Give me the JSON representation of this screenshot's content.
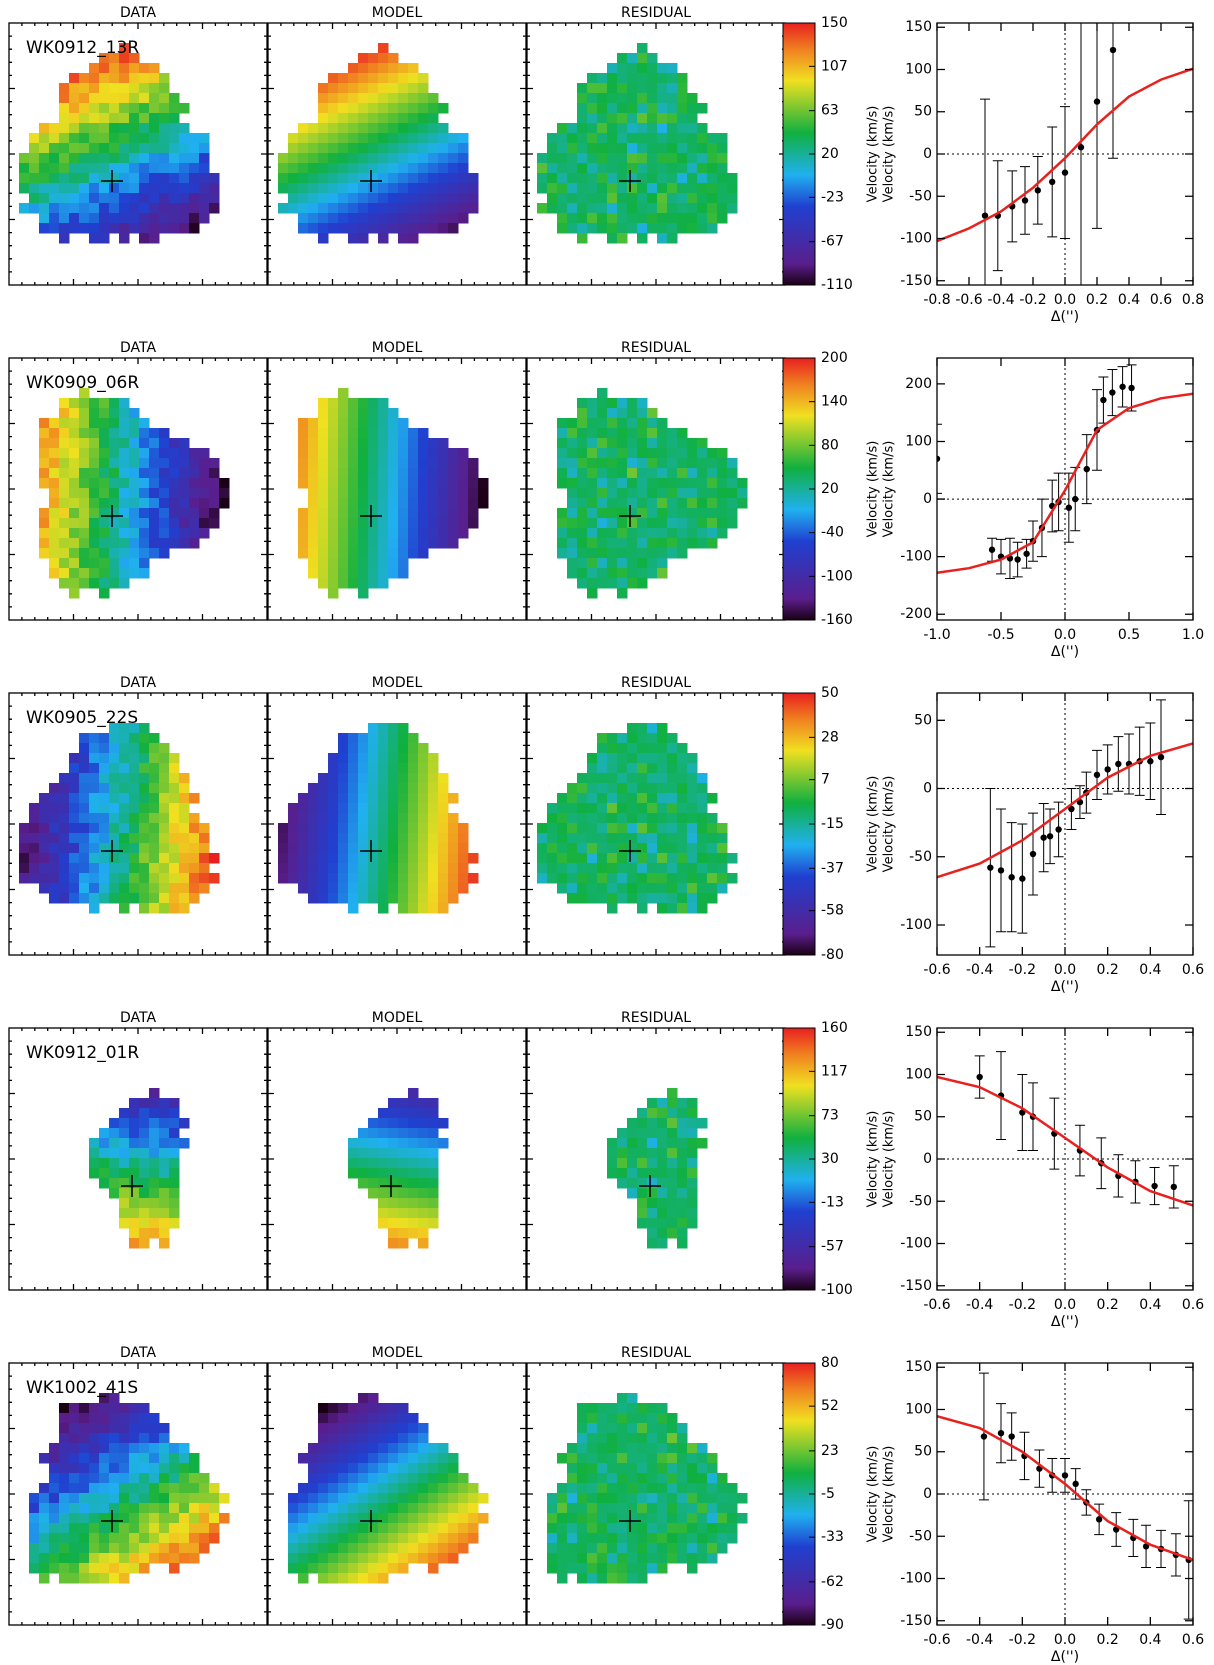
{
  "panel_titles": [
    "DATA",
    "MODEL",
    "RESIDUAL"
  ],
  "chart_data": [
    {
      "type": "scatter",
      "name": "WK0912_13R",
      "xlabel": "Δ('')",
      "ylabel": "Velocity (km/s)",
      "xlim": [
        -0.8,
        0.8
      ],
      "xticks": [
        -0.8,
        -0.6,
        -0.4,
        -0.2,
        {
          "value": 0,
          "label": "0.0"
        },
        0.2,
        0.4,
        0.6,
        0.8
      ],
      "ylim": [
        -155,
        155
      ],
      "yticks": [
        -150,
        -100,
        -50,
        0,
        50,
        100,
        150
      ],
      "colorbar": {
        "lim": [
          -110,
          150
        ],
        "ticks": [
          150,
          107,
          63,
          20,
          -23,
          -67,
          -110
        ]
      },
      "points": {
        "color": "#000000",
        "x": [
          -0.5,
          -0.42,
          -0.33,
          -0.25,
          -0.17,
          -0.08,
          0.0,
          0.1,
          0.2,
          0.3
        ],
        "values": [
          -73,
          -73,
          -62,
          -55,
          -43,
          -33,
          -22,
          8,
          62,
          123
        ],
        "errors": [
          138,
          65,
          42,
          40,
          40,
          65,
          78,
          200,
          150,
          128
        ]
      },
      "model": {
        "color": "#e8201e",
        "x": [
          -0.8,
          -0.6,
          -0.4,
          -0.2,
          0,
          0.2,
          0.4,
          0.6,
          0.8
        ],
        "values": [
          -103,
          -88,
          -68,
          -40,
          -5,
          35,
          68,
          88,
          101
        ]
      }
    },
    {
      "type": "scatter",
      "name": "WK0909_06R",
      "xlabel": "Δ('')",
      "ylabel": "Velocity (km/s)",
      "xlim": [
        -1,
        1
      ],
      "xticks": [
        {
          "value": -1,
          "label": "-1.0"
        },
        -0.5,
        {
          "value": 0,
          "label": "0.0"
        },
        0.5,
        {
          "value": 1,
          "label": "1.0"
        }
      ],
      "ylim": [
        -210,
        245
      ],
      "yticks": [
        -200,
        -100,
        0,
        100,
        200
      ],
      "colorbar": {
        "lim": [
          -160,
          200
        ],
        "ticks": [
          200,
          140,
          80,
          20,
          -40,
          -100,
          -160
        ]
      },
      "points": {
        "color": "#000000",
        "x": [
          -1.0,
          -0.57,
          -0.5,
          -0.43,
          -0.37,
          -0.3,
          -0.25,
          -0.18,
          -0.1,
          -0.05,
          0.03,
          0.08,
          0.17,
          0.25,
          0.3,
          0.37,
          0.45,
          0.52
        ],
        "values": [
          70,
          -88,
          -100,
          -103,
          -105,
          -95,
          -73,
          -50,
          -12,
          -5,
          -15,
          0,
          52,
          120,
          172,
          185,
          195,
          193
        ],
        "errors": [
          60,
          20,
          30,
          35,
          30,
          25,
          35,
          50,
          45,
          50,
          60,
          55,
          60,
          70,
          40,
          40,
          35,
          40
        ]
      },
      "model": {
        "color": "#e8201e",
        "x": [
          -1,
          -0.75,
          -0.5,
          -0.25,
          0,
          0.25,
          0.5,
          0.75,
          1
        ],
        "values": [
          -128,
          -120,
          -105,
          -75,
          15,
          120,
          158,
          175,
          183
        ]
      }
    },
    {
      "type": "scatter",
      "name": "WK0905_22S",
      "xlabel": "Δ('')",
      "ylabel": "Velocity (km/s)",
      "xlim": [
        -0.6,
        0.6
      ],
      "xticks": [
        -0.6,
        -0.4,
        -0.2,
        {
          "value": 0,
          "label": "0.0"
        },
        0.2,
        0.4,
        0.6
      ],
      "ylim": [
        -122,
        70
      ],
      "yticks": [
        -100,
        -50,
        0,
        50
      ],
      "colorbar": {
        "lim": [
          -80,
          50
        ],
        "ticks": [
          50,
          28,
          7,
          -15,
          -37,
          -58,
          -80
        ]
      },
      "points": {
        "color": "#000000",
        "x": [
          -0.35,
          -0.3,
          -0.25,
          -0.2,
          -0.15,
          -0.1,
          -0.07,
          -0.03,
          0.03,
          0.07,
          0.1,
          0.15,
          0.2,
          0.25,
          0.3,
          0.35,
          0.4,
          0.45
        ],
        "values": [
          -58,
          -60,
          -65,
          -66,
          -48,
          -36,
          -35,
          -30,
          -15,
          -10,
          -3,
          10,
          14,
          18,
          18,
          20,
          20,
          23
        ],
        "errors": [
          58,
          45,
          40,
          40,
          30,
          25,
          20,
          20,
          15,
          12,
          15,
          18,
          18,
          20,
          22,
          25,
          28,
          42
        ]
      },
      "model": {
        "color": "#e8201e",
        "x": [
          -0.6,
          -0.4,
          -0.2,
          0,
          0.2,
          0.4,
          0.6
        ],
        "values": [
          -65,
          -55,
          -38,
          -15,
          8,
          24,
          33
        ]
      }
    },
    {
      "type": "scatter",
      "name": "WK0912_01R",
      "xlabel": "Δ('')",
      "ylabel": "Velocity (km/s)",
      "xlim": [
        -0.6,
        0.6
      ],
      "xticks": [
        -0.6,
        -0.4,
        -0.2,
        {
          "value": 0,
          "label": "0.0"
        },
        0.2,
        0.4,
        0.6
      ],
      "ylim": [
        -155,
        155
      ],
      "yticks": [
        -150,
        -100,
        -50,
        0,
        50,
        100,
        150
      ],
      "colorbar": {
        "lim": [
          -100,
          160
        ],
        "ticks": [
          160,
          117,
          73,
          30,
          -13,
          -57,
          -100
        ]
      },
      "points": {
        "color": "#000000",
        "x": [
          -0.4,
          -0.3,
          -0.2,
          -0.15,
          -0.05,
          0.07,
          0.17,
          0.25,
          0.33,
          0.42,
          0.51
        ],
        "values": [
          97,
          75,
          55,
          50,
          30,
          10,
          -5,
          -20,
          -27,
          -32,
          -33
        ],
        "errors": [
          25,
          52,
          45,
          40,
          42,
          30,
          30,
          25,
          25,
          22,
          25
        ]
      },
      "model": {
        "color": "#e8201e",
        "x": [
          -0.6,
          -0.4,
          -0.2,
          0,
          0.2,
          0.4,
          0.6
        ],
        "values": [
          97,
          85,
          60,
          25,
          -10,
          -38,
          -55
        ]
      }
    },
    {
      "type": "scatter",
      "name": "WK1002_41S",
      "xlabel": "Δ('')",
      "ylabel": "Velocity (km/s)",
      "xlim": [
        -0.6,
        0.6
      ],
      "xticks": [
        -0.6,
        -0.4,
        -0.2,
        {
          "value": 0,
          "label": "0.0"
        },
        0.2,
        0.4,
        0.6
      ],
      "ylim": [
        -155,
        155
      ],
      "yticks": [
        -150,
        -100,
        -50,
        0,
        50,
        100,
        150
      ],
      "colorbar": {
        "lim": [
          -90,
          80
        ],
        "ticks": [
          80,
          52,
          23,
          -5,
          -33,
          -62,
          -90
        ]
      },
      "points": {
        "color": "#000000",
        "x": [
          -0.38,
          -0.3,
          -0.25,
          -0.19,
          -0.12,
          -0.06,
          0.0,
          0.05,
          0.1,
          0.16,
          0.24,
          0.32,
          0.38,
          0.45,
          0.52,
          0.58
        ],
        "values": [
          68,
          72,
          68,
          45,
          30,
          22,
          22,
          12,
          -10,
          -30,
          -42,
          -52,
          -62,
          -65,
          -72,
          -78
        ],
        "errors": [
          75,
          35,
          28,
          28,
          22,
          20,
          20,
          18,
          15,
          18,
          20,
          22,
          25,
          22,
          25,
          70
        ]
      },
      "model": {
        "color": "#e8201e",
        "x": [
          -0.6,
          -0.4,
          -0.2,
          0,
          0.2,
          0.4,
          0.6
        ],
        "values": [
          92,
          78,
          50,
          12,
          -32,
          -60,
          -78
        ]
      }
    }
  ]
}
